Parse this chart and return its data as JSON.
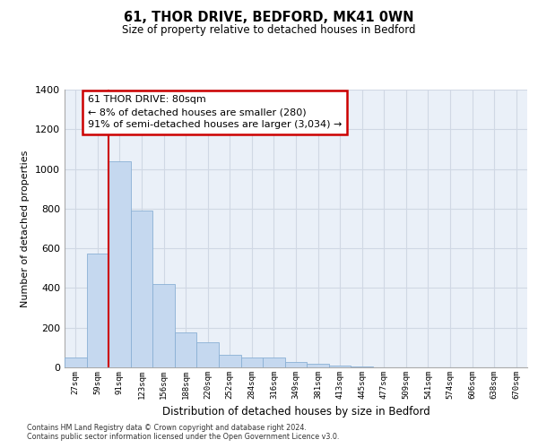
{
  "title": "61, THOR DRIVE, BEDFORD, MK41 0WN",
  "subtitle": "Size of property relative to detached houses in Bedford",
  "xlabel": "Distribution of detached houses by size in Bedford",
  "ylabel": "Number of detached properties",
  "bar_labels": [
    "27sqm",
    "59sqm",
    "91sqm",
    "123sqm",
    "156sqm",
    "188sqm",
    "220sqm",
    "252sqm",
    "284sqm",
    "316sqm",
    "349sqm",
    "381sqm",
    "413sqm",
    "445sqm",
    "477sqm",
    "509sqm",
    "541sqm",
    "574sqm",
    "606sqm",
    "638sqm",
    "670sqm"
  ],
  "bar_values": [
    50,
    575,
    1040,
    790,
    420,
    178,
    125,
    62,
    50,
    50,
    27,
    20,
    10,
    5,
    2,
    0,
    0,
    0,
    0,
    0,
    0
  ],
  "bar_color": "#c5d8ef",
  "bar_edge_color": "#8ab0d4",
  "plot_bg_color": "#eaf0f8",
  "ylim": [
    0,
    1400
  ],
  "yticks": [
    0,
    200,
    400,
    600,
    800,
    1000,
    1200,
    1400
  ],
  "property_line_x": 1.5,
  "property_line_label": "61 THOR DRIVE: 80sqm",
  "annotation_line1": "← 8% of detached houses are smaller (280)",
  "annotation_line2": "91% of semi-detached houses are larger (3,034) →",
  "annotation_box_color": "#ffffff",
  "annotation_box_edge_color": "#cc0000",
  "property_line_color": "#cc0000",
  "footnote1": "Contains HM Land Registry data © Crown copyright and database right 2024.",
  "footnote2": "Contains public sector information licensed under the Open Government Licence v3.0."
}
